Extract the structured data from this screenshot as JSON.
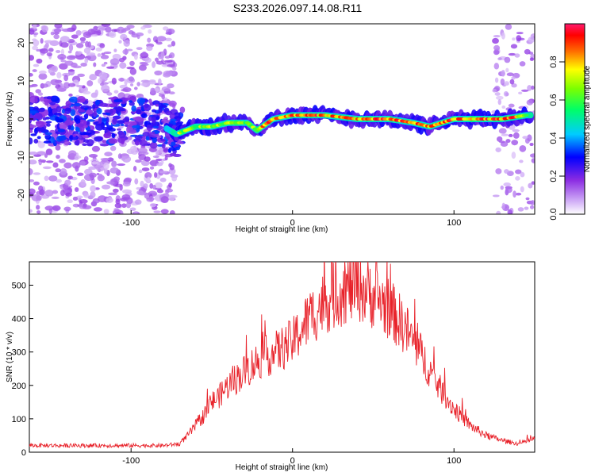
{
  "title": "S233.2026.097.14.08.R11",
  "chart_data": [
    {
      "type": "heatmap",
      "title": "",
      "xlabel": "Height of straight line (km)",
      "ylabel": "Frequency (Hz)",
      "xlim": [
        -163,
        150
      ],
      "ylim": [
        -25,
        25
      ],
      "xticks": [
        -100,
        0,
        100
      ],
      "yticks": [
        -20,
        -10,
        0,
        10,
        20
      ],
      "colorbar": {
        "label": "Normalized spectral amplitude",
        "range": [
          0,
          1
        ],
        "ticks": [
          0.0,
          0.2,
          0.4,
          0.6,
          0.8
        ],
        "colors": [
          "#ffffff",
          "#a020f0",
          "#0000ff",
          "#00ffff",
          "#00ff00",
          "#ffff00",
          "#ff0000",
          "#ff1493"
        ]
      },
      "ridge": {
        "description_points": [
          {
            "x": -160,
            "y": 0
          },
          {
            "x": -120,
            "y": -1
          },
          {
            "x": -100,
            "y": 0
          },
          {
            "x": -80,
            "y": -2
          },
          {
            "x": -72,
            "y": -4
          },
          {
            "x": -60,
            "y": -2
          },
          {
            "x": -50,
            "y": -2
          },
          {
            "x": -40,
            "y": -1
          },
          {
            "x": -28,
            "y": -1
          },
          {
            "x": -22,
            "y": -3
          },
          {
            "x": -12,
            "y": 0
          },
          {
            "x": 0,
            "y": 1
          },
          {
            "x": 20,
            "y": 1
          },
          {
            "x": 40,
            "y": 0
          },
          {
            "x": 60,
            "y": 0
          },
          {
            "x": 75,
            "y": -1
          },
          {
            "x": 85,
            "y": -2
          },
          {
            "x": 100,
            "y": 0
          },
          {
            "x": 115,
            "y": 0
          },
          {
            "x": 130,
            "y": 0
          },
          {
            "x": 145,
            "y": 1
          }
        ]
      }
    },
    {
      "type": "line",
      "title": "",
      "xlabel": "Height of straight line (km)",
      "ylabel": "SNR (10 * v/v)",
      "xlim": [
        -163,
        150
      ],
      "ylim": [
        0,
        570
      ],
      "xticks": [
        -100,
        0,
        100
      ],
      "yticks": [
        0,
        100,
        200,
        300,
        400,
        500
      ],
      "line_color": "#e8222a",
      "series": [
        {
          "x": [
            -163,
            -140,
            -120,
            -100,
            -80,
            -70,
            -65,
            -60,
            -55,
            -50,
            -45,
            -40,
            -30,
            -20,
            -10,
            0,
            10,
            20,
            30,
            40,
            50,
            60,
            70,
            80,
            90,
            100,
            110,
            120,
            130,
            140,
            150
          ],
          "values": [
            20,
            20,
            20,
            20,
            20,
            25,
            50,
            80,
            110,
            150,
            170,
            200,
            240,
            280,
            300,
            330,
            400,
            450,
            480,
            500,
            470,
            430,
            370,
            290,
            200,
            130,
            80,
            50,
            35,
            25,
            40
          ]
        }
      ]
    }
  ]
}
